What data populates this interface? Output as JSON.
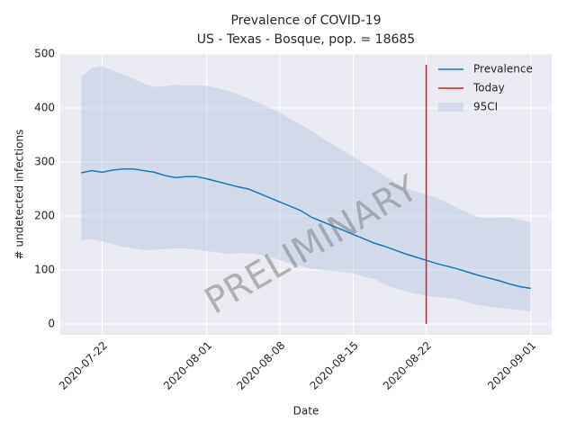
{
  "chart_data": {
    "type": "line",
    "title": "Prevalence of COVID-19",
    "subtitle": "US - Texas - Bosque, pop. = 18685",
    "xlabel": "Date",
    "ylabel": "# undetected infections",
    "x": [
      "2020-07-20",
      "2020-07-21",
      "2020-07-22",
      "2020-07-23",
      "2020-07-24",
      "2020-07-25",
      "2020-07-26",
      "2020-07-27",
      "2020-07-28",
      "2020-07-29",
      "2020-07-30",
      "2020-07-31",
      "2020-08-01",
      "2020-08-02",
      "2020-08-03",
      "2020-08-04",
      "2020-08-05",
      "2020-08-06",
      "2020-08-07",
      "2020-08-08",
      "2020-08-09",
      "2020-08-10",
      "2020-08-11",
      "2020-08-12",
      "2020-08-13",
      "2020-08-14",
      "2020-08-15",
      "2020-08-16",
      "2020-08-17",
      "2020-08-18",
      "2020-08-19",
      "2020-08-20",
      "2020-08-21",
      "2020-08-22",
      "2020-08-23",
      "2020-08-24",
      "2020-08-25",
      "2020-08-26",
      "2020-08-27",
      "2020-08-28",
      "2020-08-29",
      "2020-08-30",
      "2020-08-31",
      "2020-09-01"
    ],
    "series": [
      {
        "name": "Prevalence",
        "color": "#1f77b4",
        "values": [
          280,
          284,
          281,
          285,
          287,
          287,
          284,
          281,
          275,
          271,
          273,
          273,
          269,
          264,
          259,
          254,
          250,
          242,
          234,
          226,
          218,
          210,
          198,
          190,
          182,
          174,
          166,
          158,
          150,
          144,
          137,
          130,
          124,
          118,
          112,
          107,
          102,
          96,
          90,
          85,
          80,
          74,
          69,
          66
        ]
      }
    ],
    "today": {
      "name": "Today",
      "color": "#e41a1c",
      "x": [
        "2020-08-22",
        "2020-08-22"
      ],
      "values": [
        0,
        480
      ]
    },
    "band": {
      "name": "95CI",
      "color": "#b0c4de",
      "upper": [
        458,
        474,
        478,
        470,
        462,
        454,
        445,
        439,
        440,
        443,
        441,
        442,
        441,
        437,
        432,
        425,
        418,
        410,
        400,
        392,
        380,
        369,
        358,
        345,
        333,
        322,
        310,
        298,
        287,
        275,
        263,
        252,
        245,
        240,
        234,
        225,
        215,
        206,
        197,
        196,
        197,
        197,
        193,
        188
      ],
      "lower": [
        155,
        157,
        153,
        148,
        143,
        140,
        137,
        137,
        139,
        140,
        140,
        138,
        135,
        133,
        130,
        131,
        131,
        129,
        125,
        118,
        112,
        107,
        102,
        100,
        98,
        96,
        94,
        88,
        84,
        73,
        66,
        61,
        56,
        52,
        50,
        48,
        46,
        40,
        35,
        32,
        30,
        28,
        26,
        24
      ]
    },
    "annotation": "PRELIMINARY",
    "xlim": [
      "2020-07-18",
      "2020-09-03"
    ],
    "xticks": [
      "2020-07-22",
      "2020-08-01",
      "2020-08-08",
      "2020-08-15",
      "2020-08-22",
      "2020-09-01"
    ],
    "ylim": [
      -20,
      500
    ],
    "yticks": [
      0,
      100,
      200,
      300,
      400,
      500
    ],
    "grid": true,
    "legend": "upper right",
    "background": "#eaeaf2"
  }
}
